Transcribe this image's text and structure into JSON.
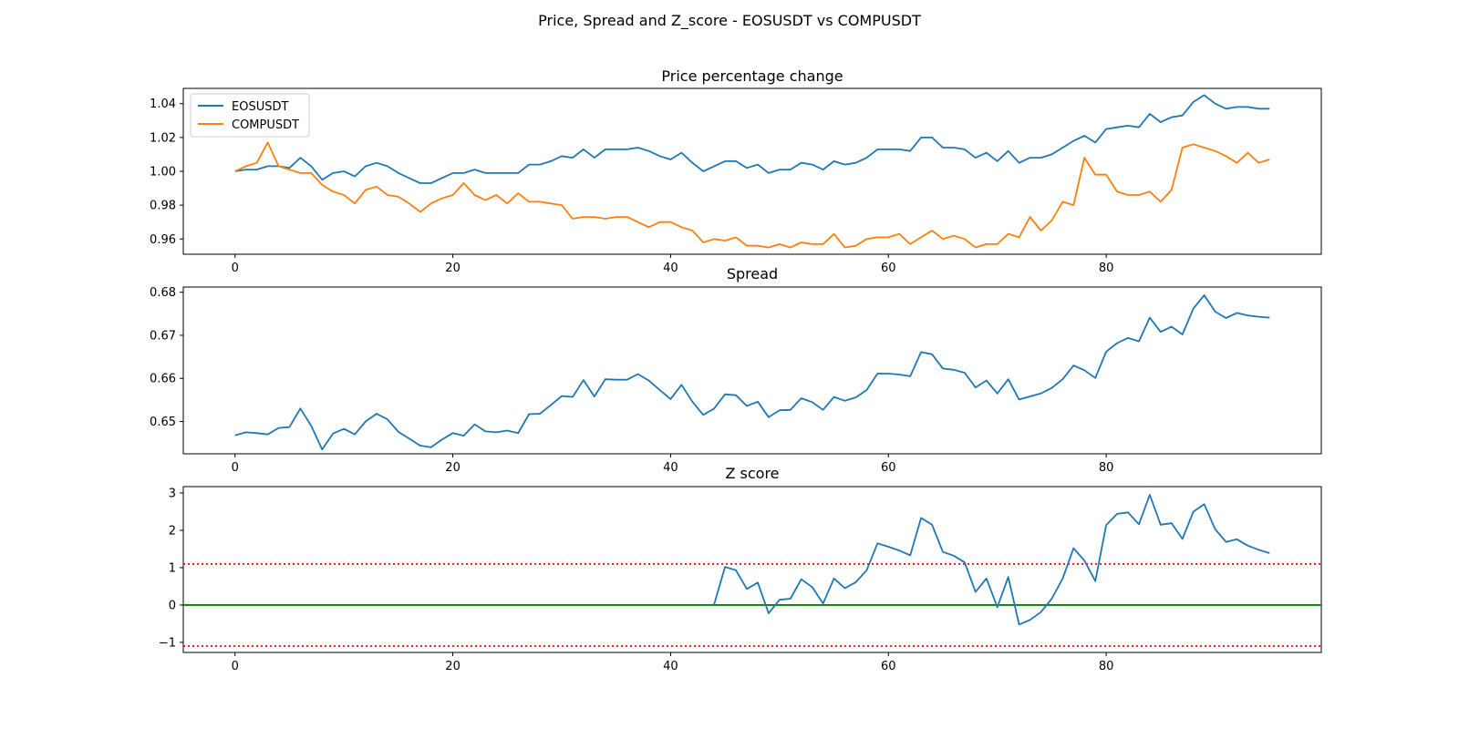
{
  "figure": {
    "suptitle": "Price, Spread and Z_score - EOSUSDT vs COMPUSDT"
  },
  "chart_data": [
    {
      "type": "line",
      "title": "Price percentage change",
      "xlabel": "",
      "ylabel": "",
      "xlim": [
        -4.75,
        99.75
      ],
      "ylim": [
        0.951,
        1.049
      ],
      "xticks": [
        0,
        20,
        40,
        60,
        80
      ],
      "yticks": [
        0.96,
        0.98,
        1.0,
        1.02,
        1.04
      ],
      "ytick_labels": [
        "0.96",
        "0.98",
        "1.00",
        "1.02",
        "1.04"
      ],
      "legend": "upper-left",
      "series": [
        {
          "name": "EOSUSDT",
          "color": "#1f77b4",
          "values": [
            1.0,
            1.001,
            1.001,
            1.003,
            1.003,
            1.002,
            1.008,
            1.003,
            0.995,
            0.999,
            1.0,
            0.997,
            1.003,
            1.005,
            1.003,
            0.999,
            0.996,
            0.993,
            0.993,
            0.996,
            0.999,
            0.999,
            1.001,
            0.999,
            0.999,
            0.999,
            0.999,
            1.004,
            1.004,
            1.006,
            1.009,
            1.008,
            1.013,
            1.008,
            1.013,
            1.013,
            1.013,
            1.014,
            1.012,
            1.009,
            1.007,
            1.011,
            1.005,
            1.0,
            1.003,
            1.006,
            1.006,
            1.002,
            1.004,
            0.999,
            1.001,
            1.001,
            1.005,
            1.004,
            1.001,
            1.006,
            1.004,
            1.005,
            1.008,
            1.013,
            1.013,
            1.013,
            1.012,
            1.02,
            1.02,
            1.014,
            1.014,
            1.013,
            1.008,
            1.011,
            1.006,
            1.012,
            1.005,
            1.008,
            1.008,
            1.01,
            1.014,
            1.018,
            1.021,
            1.017,
            1.025,
            1.026,
            1.027,
            1.026,
            1.034,
            1.029,
            1.032,
            1.033,
            1.041,
            1.045,
            1.04,
            1.037,
            1.038,
            1.038,
            1.037,
            1.037
          ]
        },
        {
          "name": "COMPUSDT",
          "color": "#ff7f0e",
          "values": [
            1.0,
            1.003,
            1.005,
            1.017,
            1.003,
            1.001,
            0.999,
            0.999,
            0.992,
            0.988,
            0.986,
            0.981,
            0.989,
            0.991,
            0.986,
            0.985,
            0.981,
            0.976,
            0.981,
            0.984,
            0.986,
            0.993,
            0.986,
            0.983,
            0.986,
            0.981,
            0.987,
            0.982,
            0.982,
            0.981,
            0.98,
            0.972,
            0.973,
            0.973,
            0.972,
            0.973,
            0.973,
            0.97,
            0.967,
            0.97,
            0.97,
            0.967,
            0.965,
            0.958,
            0.96,
            0.959,
            0.961,
            0.956,
            0.956,
            0.955,
            0.957,
            0.955,
            0.958,
            0.957,
            0.957,
            0.963,
            0.955,
            0.956,
            0.96,
            0.961,
            0.961,
            0.963,
            0.957,
            0.961,
            0.965,
            0.96,
            0.962,
            0.96,
            0.955,
            0.957,
            0.957,
            0.963,
            0.961,
            0.973,
            0.965,
            0.971,
            0.982,
            0.98,
            1.008,
            0.998,
            0.998,
            0.988,
            0.986,
            0.986,
            0.988,
            0.982,
            0.989,
            1.014,
            1.016,
            1.014,
            1.012,
            1.009,
            1.005,
            1.011,
            1.005,
            1.007
          ]
        }
      ]
    },
    {
      "type": "line",
      "title": "Spread",
      "xlabel": "",
      "ylabel": "",
      "xlim": [
        -4.75,
        99.75
      ],
      "ylim": [
        0.6425,
        0.6812
      ],
      "xticks": [
        0,
        20,
        40,
        60,
        80
      ],
      "yticks": [
        0.65,
        0.66,
        0.67,
        0.68
      ],
      "ytick_labels": [
        "0.65",
        "0.66",
        "0.67",
        "0.68"
      ],
      "series": [
        {
          "color": "#1f77b4",
          "values": [
            0.6468,
            0.6475,
            0.6473,
            0.647,
            0.6485,
            0.6487,
            0.653,
            0.649,
            0.6435,
            0.6472,
            0.6483,
            0.647,
            0.65,
            0.6518,
            0.6505,
            0.6476,
            0.646,
            0.6444,
            0.644,
            0.6458,
            0.6473,
            0.6467,
            0.6493,
            0.6477,
            0.6475,
            0.6479,
            0.6473,
            0.6517,
            0.6518,
            0.6538,
            0.6559,
            0.6557,
            0.6596,
            0.6558,
            0.6598,
            0.6597,
            0.6597,
            0.661,
            0.6595,
            0.6573,
            0.6552,
            0.6585,
            0.6546,
            0.6515,
            0.653,
            0.6563,
            0.6561,
            0.6536,
            0.6546,
            0.651,
            0.6526,
            0.6527,
            0.6554,
            0.6545,
            0.6527,
            0.6557,
            0.6548,
            0.6556,
            0.6573,
            0.6611,
            0.6611,
            0.6609,
            0.6605,
            0.6661,
            0.6656,
            0.6623,
            0.662,
            0.6613,
            0.6579,
            0.6595,
            0.6565,
            0.6598,
            0.6551,
            0.6558,
            0.6565,
            0.6578,
            0.6598,
            0.663,
            0.6619,
            0.6601,
            0.6662,
            0.6682,
            0.6694,
            0.6686,
            0.6741,
            0.6708,
            0.672,
            0.6702,
            0.6762,
            0.6793,
            0.6755,
            0.674,
            0.6752,
            0.6746,
            0.6743,
            0.6741
          ]
        }
      ]
    },
    {
      "type": "line",
      "title": "Z score",
      "xlabel": "",
      "ylabel": "",
      "xlim": [
        -4.75,
        99.75
      ],
      "ylim": [
        -1.27,
        3.17
      ],
      "xticks": [
        0,
        20,
        40,
        60,
        80
      ],
      "yticks": [
        -1,
        0,
        1,
        2,
        3
      ],
      "ytick_labels": [
        "−1",
        "0",
        "1",
        "2",
        "3"
      ],
      "series": [
        {
          "color": "#1f77b4",
          "x_start": 44,
          "values": [
            0.02,
            1.02,
            0.93,
            0.43,
            0.6,
            -0.22,
            0.14,
            0.17,
            0.69,
            0.48,
            0.04,
            0.71,
            0.45,
            0.61,
            0.93,
            1.65,
            1.56,
            1.46,
            1.33,
            2.33,
            2.15,
            1.42,
            1.32,
            1.14,
            0.35,
            0.71,
            -0.06,
            0.75,
            -0.52,
            -0.4,
            -0.19,
            0.17,
            0.71,
            1.52,
            1.19,
            0.64,
            2.14,
            2.44,
            2.48,
            2.16,
            2.95,
            2.15,
            2.19,
            1.77,
            2.5,
            2.7,
            2.03,
            1.69,
            1.76,
            1.59,
            1.48,
            1.39
          ]
        }
      ],
      "hlines": [
        {
          "y": 0,
          "color": "#008000",
          "style": "solid"
        },
        {
          "y": 1.1,
          "color": "#ff0000",
          "style": "dotted"
        },
        {
          "y": -1.1,
          "color": "#ff0000",
          "style": "dotted"
        }
      ]
    }
  ]
}
